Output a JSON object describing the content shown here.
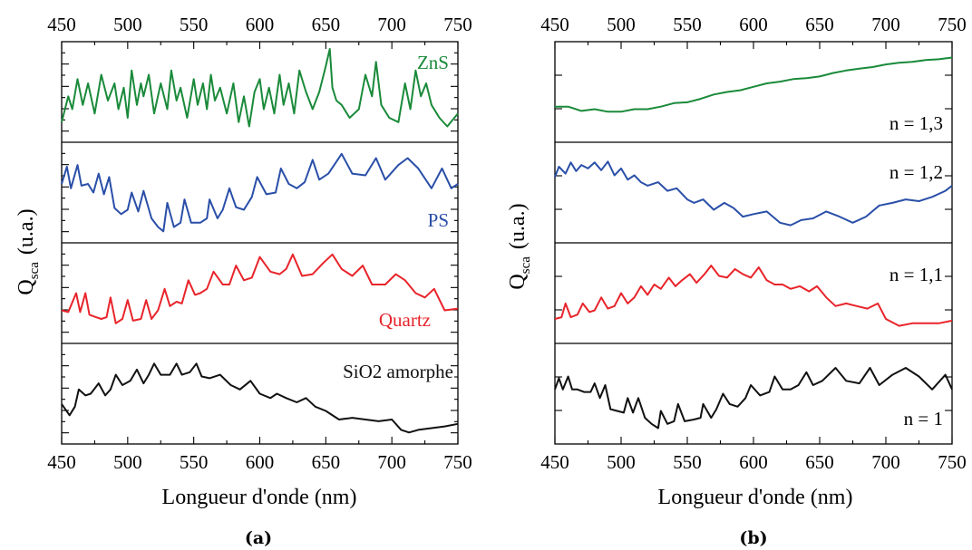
{
  "chart_data": [
    {
      "type": "line",
      "caption": "(a)",
      "xlabel": "Longueur d'onde (nm)",
      "ylabel": "Q",
      "ylabel_sub": "sca",
      "ylabel_unit": "(u.a.)",
      "x_ticks": [
        "450",
        "500",
        "550",
        "600",
        "650",
        "700",
        "750"
      ],
      "xlim": [
        450,
        750
      ],
      "stacked_panels": true,
      "series": [
        {
          "name": "ZnS",
          "color": "#1a8a3a",
          "x": [
            450,
            455,
            458,
            462,
            466,
            470,
            475,
            480,
            485,
            490,
            493,
            497,
            500,
            503,
            507,
            510,
            512,
            516,
            520,
            525,
            530,
            533,
            537,
            540,
            545,
            550,
            553,
            557,
            560,
            563,
            566,
            570,
            575,
            580,
            584,
            588,
            592,
            596,
            600,
            603,
            607,
            611,
            615,
            618,
            622,
            626,
            630,
            635,
            640,
            645,
            650,
            653,
            655,
            658,
            662,
            668,
            675,
            680,
            685,
            688,
            692,
            698,
            705,
            710,
            714,
            718,
            722,
            726,
            730,
            736,
            742,
            750
          ],
          "values": [
            0.15,
            0.45,
            0.3,
            0.65,
            0.35,
            0.6,
            0.25,
            0.7,
            0.4,
            0.6,
            0.3,
            0.55,
            0.2,
            0.75,
            0.35,
            0.6,
            0.45,
            0.7,
            0.25,
            0.6,
            0.3,
            0.75,
            0.4,
            0.55,
            0.2,
            0.65,
            0.35,
            0.6,
            0.3,
            0.7,
            0.4,
            0.55,
            0.25,
            0.6,
            0.15,
            0.45,
            0.1,
            0.5,
            0.65,
            0.3,
            0.55,
            0.25,
            0.7,
            0.35,
            0.6,
            0.25,
            0.75,
            0.5,
            0.3,
            0.5,
            0.8,
            1.0,
            0.55,
            0.4,
            0.35,
            0.2,
            0.3,
            0.7,
            0.45,
            0.85,
            0.35,
            0.2,
            0.15,
            0.6,
            0.3,
            0.75,
            0.45,
            0.6,
            0.35,
            0.2,
            0.1,
            0.25
          ]
        },
        {
          "name": "PS",
          "color": "#2a4fa8",
          "x": [
            450,
            454,
            457,
            462,
            465,
            470,
            474,
            478,
            482,
            486,
            490,
            495,
            500,
            503,
            508,
            512,
            518,
            523,
            527,
            530,
            535,
            540,
            543,
            548,
            555,
            560,
            562,
            568,
            572,
            577,
            582,
            588,
            594,
            598,
            605,
            612,
            616,
            622,
            628,
            634,
            640,
            645,
            652,
            662,
            670,
            680,
            688,
            695,
            705,
            712,
            720,
            730,
            738,
            745,
            750
          ],
          "values": [
            0.6,
            0.8,
            0.55,
            0.82,
            0.58,
            0.6,
            0.5,
            0.72,
            0.48,
            0.68,
            0.32,
            0.25,
            0.3,
            0.5,
            0.28,
            0.52,
            0.2,
            0.1,
            0.05,
            0.38,
            0.1,
            0.15,
            0.42,
            0.15,
            0.15,
            0.2,
            0.42,
            0.2,
            0.3,
            0.55,
            0.33,
            0.3,
            0.45,
            0.68,
            0.48,
            0.5,
            0.78,
            0.6,
            0.55,
            0.62,
            0.88,
            0.65,
            0.72,
            0.95,
            0.72,
            0.7,
            0.9,
            0.65,
            0.82,
            0.9,
            0.78,
            0.55,
            0.78,
            0.55,
            0.6
          ]
        },
        {
          "name": "Quartz",
          "color": "#e8242b",
          "x": [
            450,
            455,
            461,
            464,
            468,
            471,
            476,
            480,
            484,
            487,
            491,
            496,
            500,
            504,
            510,
            514,
            518,
            523,
            528,
            532,
            537,
            541,
            546,
            551,
            555,
            560,
            565,
            572,
            577,
            582,
            588,
            594,
            600,
            608,
            615,
            620,
            625,
            632,
            640,
            648,
            655,
            662,
            670,
            678,
            685,
            695,
            703,
            710,
            718,
            725,
            732,
            740,
            750
          ],
          "values": [
            0.3,
            0.28,
            0.5,
            0.28,
            0.5,
            0.25,
            0.22,
            0.2,
            0.22,
            0.45,
            0.15,
            0.2,
            0.42,
            0.18,
            0.2,
            0.42,
            0.2,
            0.3,
            0.55,
            0.35,
            0.4,
            0.38,
            0.65,
            0.48,
            0.5,
            0.55,
            0.75,
            0.6,
            0.6,
            0.82,
            0.65,
            0.68,
            0.92,
            0.75,
            0.72,
            0.78,
            0.95,
            0.7,
            0.72,
            0.85,
            0.95,
            0.78,
            0.7,
            0.82,
            0.6,
            0.6,
            0.72,
            0.65,
            0.5,
            0.45,
            0.55,
            0.3,
            0.32
          ]
        },
        {
          "name": "SiO2 amorphe",
          "color": "#111111",
          "x": [
            450,
            456,
            460,
            463,
            468,
            472,
            478,
            483,
            487,
            491,
            496,
            502,
            507,
            512,
            516,
            520,
            525,
            532,
            537,
            541,
            547,
            552,
            556,
            562,
            570,
            578,
            585,
            593,
            600,
            608,
            613,
            620,
            628,
            635,
            642,
            650,
            660,
            670,
            680,
            690,
            700,
            707,
            713,
            720,
            730,
            740,
            750
          ],
          "values": [
            0.38,
            0.25,
            0.35,
            0.55,
            0.48,
            0.5,
            0.62,
            0.48,
            0.55,
            0.72,
            0.6,
            0.65,
            0.78,
            0.62,
            0.72,
            0.85,
            0.72,
            0.72,
            0.85,
            0.72,
            0.75,
            0.85,
            0.7,
            0.68,
            0.72,
            0.6,
            0.55,
            0.65,
            0.5,
            0.45,
            0.5,
            0.45,
            0.4,
            0.45,
            0.35,
            0.3,
            0.2,
            0.22,
            0.2,
            0.18,
            0.2,
            0.08,
            0.05,
            0.08,
            0.1,
            0.12,
            0.15
          ]
        }
      ]
    },
    {
      "type": "line",
      "caption": "(b)",
      "xlabel": "Longueur d'onde (nm)",
      "ylabel": "Q",
      "ylabel_sub": "sca",
      "ylabel_unit": "(u.a.)",
      "x_ticks": [
        "450",
        "500",
        "550",
        "600",
        "650",
        "700",
        "750"
      ],
      "xlim": [
        450,
        750
      ],
      "stacked_panels": true,
      "series": [
        {
          "name": "n = 1,3",
          "color": "#1a8a3a",
          "x": [
            450,
            460,
            470,
            480,
            490,
            500,
            510,
            520,
            530,
            540,
            550,
            560,
            570,
            580,
            590,
            600,
            610,
            620,
            630,
            640,
            650,
            660,
            670,
            680,
            690,
            700,
            710,
            720,
            730,
            740,
            750
          ],
          "values": [
            0.33,
            0.33,
            0.28,
            0.3,
            0.27,
            0.27,
            0.3,
            0.3,
            0.33,
            0.37,
            0.38,
            0.42,
            0.47,
            0.5,
            0.52,
            0.56,
            0.6,
            0.62,
            0.65,
            0.66,
            0.68,
            0.72,
            0.75,
            0.77,
            0.79,
            0.82,
            0.84,
            0.85,
            0.87,
            0.88,
            0.9
          ]
        },
        {
          "name": "n = 1,2",
          "color": "#2a4fa8",
          "x": [
            450,
            453,
            458,
            462,
            466,
            470,
            475,
            480,
            485,
            490,
            495,
            500,
            505,
            510,
            515,
            520,
            528,
            535,
            542,
            550,
            555,
            562,
            570,
            578,
            585,
            592,
            600,
            610,
            620,
            628,
            636,
            645,
            655,
            665,
            675,
            685,
            695,
            705,
            715,
            725,
            735,
            745,
            750
          ],
          "values": [
            0.68,
            0.8,
            0.72,
            0.85,
            0.75,
            0.82,
            0.78,
            0.85,
            0.76,
            0.86,
            0.7,
            0.78,
            0.65,
            0.7,
            0.62,
            0.58,
            0.62,
            0.52,
            0.55,
            0.42,
            0.38,
            0.42,
            0.3,
            0.38,
            0.32,
            0.22,
            0.25,
            0.28,
            0.15,
            0.12,
            0.18,
            0.2,
            0.28,
            0.22,
            0.15,
            0.22,
            0.35,
            0.38,
            0.42,
            0.4,
            0.45,
            0.52,
            0.58
          ]
        },
        {
          "name": "n = 1,1",
          "color": "#e8242b",
          "x": [
            450,
            455,
            458,
            462,
            467,
            471,
            476,
            480,
            485,
            490,
            495,
            500,
            505,
            510,
            515,
            520,
            525,
            530,
            536,
            541,
            546,
            552,
            557,
            563,
            568,
            574,
            580,
            586,
            592,
            598,
            604,
            610,
            616,
            622,
            628,
            635,
            642,
            648,
            655,
            662,
            670,
            678,
            686,
            694,
            700,
            710,
            720,
            730,
            740,
            750
          ],
          "values": [
            0.2,
            0.22,
            0.38,
            0.22,
            0.25,
            0.38,
            0.28,
            0.3,
            0.45,
            0.32,
            0.35,
            0.5,
            0.38,
            0.45,
            0.58,
            0.48,
            0.6,
            0.55,
            0.68,
            0.58,
            0.65,
            0.72,
            0.62,
            0.72,
            0.82,
            0.7,
            0.68,
            0.78,
            0.72,
            0.68,
            0.8,
            0.65,
            0.6,
            0.6,
            0.55,
            0.58,
            0.52,
            0.58,
            0.45,
            0.35,
            0.38,
            0.35,
            0.32,
            0.38,
            0.2,
            0.12,
            0.15,
            0.15,
            0.15,
            0.18
          ]
        },
        {
          "name": "n = 1",
          "color": "#111111",
          "x": [
            450,
            453,
            456,
            460,
            463,
            467,
            472,
            477,
            480,
            484,
            488,
            492,
            497,
            502,
            505,
            509,
            513,
            518,
            523,
            528,
            530,
            535,
            540,
            543,
            548,
            555,
            560,
            562,
            568,
            572,
            577,
            582,
            588,
            594,
            598,
            605,
            612,
            616,
            622,
            628,
            634,
            640,
            645,
            652,
            662,
            670,
            680,
            688,
            695,
            705,
            715,
            725,
            735,
            745,
            750
          ],
          "values": [
            0.55,
            0.68,
            0.55,
            0.7,
            0.55,
            0.55,
            0.52,
            0.52,
            0.62,
            0.45,
            0.6,
            0.32,
            0.3,
            0.28,
            0.45,
            0.28,
            0.45,
            0.22,
            0.15,
            0.1,
            0.3,
            0.15,
            0.18,
            0.38,
            0.18,
            0.2,
            0.22,
            0.38,
            0.22,
            0.32,
            0.5,
            0.38,
            0.35,
            0.45,
            0.6,
            0.48,
            0.52,
            0.7,
            0.55,
            0.55,
            0.6,
            0.75,
            0.6,
            0.65,
            0.8,
            0.65,
            0.62,
            0.8,
            0.6,
            0.72,
            0.8,
            0.7,
            0.55,
            0.72,
            0.55
          ]
        }
      ]
    }
  ]
}
